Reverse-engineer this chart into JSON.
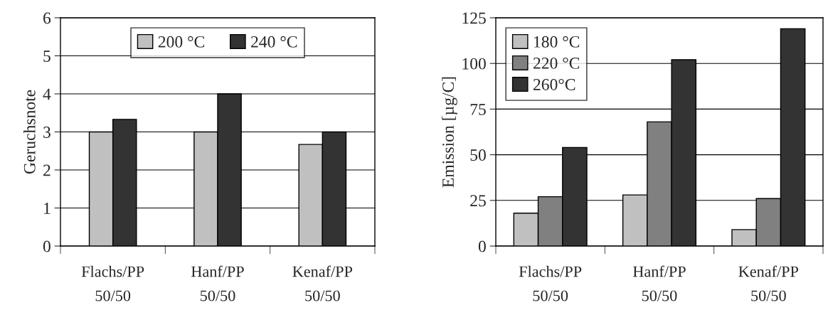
{
  "chart_data": [
    {
      "type": "bar",
      "ylabel": "Geruchsnote",
      "categories": [
        "Flachs/PP\n50/50",
        "Hanf/PP\n50/50",
        "Kenaf/PP\n50/50"
      ],
      "series": [
        {
          "name": "200 °C",
          "color": "#c0c0c0",
          "values": [
            3,
            3,
            2.67
          ]
        },
        {
          "name": "240 °C",
          "color": "#333333",
          "values": [
            3.33,
            4,
            3
          ]
        }
      ],
      "ylim": [
        0,
        6
      ],
      "yticks": [
        0,
        1,
        2,
        3,
        4,
        5,
        6
      ],
      "grid": "y",
      "legend": "top"
    },
    {
      "type": "bar",
      "ylabel": "Emission [µg/C]",
      "categories": [
        "Flachs/PP\n50/50",
        "Hanf/PP\n50/50",
        "Kenaf/PP\n50/50"
      ],
      "series": [
        {
          "name": "180 °C",
          "color": "#c0c0c0",
          "values": [
            18,
            28,
            9
          ]
        },
        {
          "name": "220 °C",
          "color": "#808080",
          "values": [
            27,
            68,
            26
          ]
        },
        {
          "name": "260°C",
          "color": "#333333",
          "values": [
            54,
            102,
            119
          ]
        }
      ],
      "ylim": [
        0,
        125
      ],
      "yticks": [
        0,
        25,
        50,
        75,
        100,
        125
      ],
      "grid": "y",
      "legend": "top left"
    }
  ]
}
